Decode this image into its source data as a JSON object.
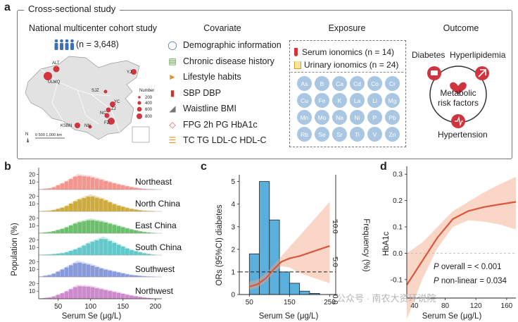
{
  "panel_a": {
    "label": "a",
    "frame_title": "Cross-sectional study",
    "cohort": {
      "heading": "National multicenter cohort study",
      "n_text": "(n = 3,648)",
      "map_cities": [
        "ALT",
        "ULMQ",
        "YJ",
        "SJZ",
        "YC",
        "ZJ",
        "NC",
        "FZ",
        "KSBN",
        "NN"
      ],
      "legend_title": "Number",
      "legend_values": [
        "200",
        "400",
        "600",
        "800"
      ],
      "scale_text": "0   500  1,000 km",
      "north": "N"
    },
    "covariate": {
      "heading": "Covariate",
      "items": [
        {
          "icon": "person-icon",
          "label": "Demographic information",
          "color": "#3b6fb6"
        },
        {
          "icon": "chronic-disease-icon",
          "label": "Chronic disease history",
          "color": "#4d9a3c"
        },
        {
          "icon": "running-person-icon",
          "label": "Lifestyle habits",
          "color": "#e8912d"
        },
        {
          "icon": "thermometer-icon",
          "label": "SBP  DBP",
          "color": "#c0392b"
        },
        {
          "icon": "waist-icon",
          "label": "Waistline  BMI",
          "color": "#777777"
        },
        {
          "icon": "blood-drop-icon",
          "label": "FPG   2h PG   HbA1c",
          "color": "#d9534f"
        },
        {
          "icon": "lipid-icon",
          "label": "TC  TG  LDL-C  HDL-C",
          "color": "#e8912d"
        }
      ]
    },
    "exposure": {
      "heading": "Exposure",
      "serum": "Serum ionomics (n = 14)",
      "urinary": "Urinary ionomics (n = 24)",
      "elements": [
        "As",
        "B",
        "Ca",
        "Cd",
        "Co",
        "Cr",
        "Cu",
        "Fe",
        "K",
        "La",
        "Li",
        "Mg",
        "Mn",
        "Mo",
        "Na",
        "Ni",
        "P",
        "Pb",
        "Rb",
        "Se",
        "Sr",
        "Ti",
        "V",
        "Zn"
      ]
    },
    "outcome": {
      "heading": "Outcome",
      "top_labels": "Diabetes  Hyperlipidemia",
      "center": "Metabolic\nrisk factors",
      "bottom": "Hypertension"
    }
  },
  "panel_b": {
    "label": "b",
    "ylabel": "Population (%)",
    "xlabel": "Serum Se (μg/L)",
    "xticks": [
      "50",
      "100",
      "150",
      "200"
    ],
    "yticks": [
      "10",
      "20"
    ],
    "colors": {
      "Northeast": "#f28b82",
      "North China": "#c9a227",
      "East China": "#5cb85c",
      "South China": "#4fc3c3",
      "Southwest": "#7b8fd6",
      "Northwest": "#c77cc7"
    }
  },
  "panel_c": {
    "label": "c",
    "ylabel_left": "ORs (95%CI) diabetes",
    "ylabel_right": "Frequency (%)",
    "xlabel": "Serum Se (μg/L)",
    "xticks": [
      "50",
      "150",
      "250"
    ],
    "yticks_left": [
      "0",
      "1",
      "2",
      "3",
      "4",
      "5"
    ],
    "yticks_right": [
      "0.0",
      "5.0",
      "10.0"
    ]
  },
  "panel_d": {
    "label": "d",
    "ylabel": "HbA1c",
    "xlabel": "Serum Se (μg/L)",
    "xticks": [
      "40",
      "80",
      "120",
      "160"
    ],
    "yticks": [
      "-0.1",
      "0.0",
      "0.1",
      "0.2",
      "0.3"
    ],
    "p_overall_text": " overall = < 0.001",
    "p_nonlinear_text": " non-linear = 0.034",
    "p_symbol": "P"
  },
  "watermark": "公众号 · 南农大资环说院",
  "chart_data": [
    {
      "type": "area",
      "title": "",
      "xlabel": "Serum Se (μg/L)",
      "ylabel": "Population (%)",
      "x": [
        20,
        40,
        60,
        80,
        100,
        120,
        140,
        160,
        180,
        200
      ],
      "xlim": [
        20,
        210
      ],
      "series": [
        {
          "name": "Northeast",
          "values": [
            0,
            2,
            10,
            20,
            18,
            13,
            8,
            4,
            1,
            0
          ]
        },
        {
          "name": "North China",
          "values": [
            0,
            1,
            6,
            16,
            22,
            17,
            9,
            4,
            1,
            0
          ]
        },
        {
          "name": "East China",
          "values": [
            0,
            2,
            7,
            15,
            19,
            16,
            11,
            6,
            2,
            0
          ]
        },
        {
          "name": "South China",
          "values": [
            0,
            1,
            3,
            9,
            18,
            24,
            16,
            8,
            3,
            0
          ]
        },
        {
          "name": "Southwest",
          "values": [
            0,
            3,
            12,
            21,
            17,
            11,
            7,
            3,
            1,
            0
          ]
        },
        {
          "name": "Northwest",
          "values": [
            0,
            2,
            9,
            18,
            17,
            13,
            9,
            5,
            2,
            0
          ]
        }
      ]
    },
    {
      "type": "bar",
      "title": "",
      "xlabel": "Serum Se (μg/L)",
      "ylabel": "ORs (95%CI) diabetes",
      "xlim": [
        25,
        265
      ],
      "ylim": [
        0,
        5.3
      ],
      "bins": [
        {
          "x0": 50,
          "x1": 75,
          "value": 1.8
        },
        {
          "x0": 75,
          "x1": 100,
          "value": 5.0
        },
        {
          "x0": 100,
          "x1": 125,
          "value": 3.3
        },
        {
          "x0": 125,
          "x1": 150,
          "value": 1.0
        },
        {
          "x0": 150,
          "x1": 175,
          "value": 0.5
        },
        {
          "x0": 175,
          "x1": 200,
          "value": 0.15
        },
        {
          "x0": 200,
          "x1": 225,
          "value": 0.05
        }
      ],
      "or_curve": {
        "x": [
          50,
          70,
          90,
          110,
          130,
          150,
          175,
          200,
          225,
          250
        ],
        "y": [
          0.35,
          0.45,
          0.7,
          1.1,
          1.45,
          1.6,
          1.7,
          1.85,
          2.0,
          2.15
        ],
        "lower": [
          0.2,
          0.3,
          0.55,
          0.95,
          1.25,
          1.2,
          0.95,
          0.8,
          0.65,
          0.5
        ],
        "upper": [
          0.55,
          0.65,
          0.9,
          1.3,
          1.7,
          2.1,
          2.6,
          3.1,
          3.6,
          4.1
        ]
      },
      "reference_line": 1
    },
    {
      "type": "line",
      "title": "",
      "xlabel": "Serum Se (μg/L)",
      "ylabel": "HbA1c",
      "xlim": [
        30,
        172
      ],
      "ylim": [
        -0.17,
        0.33
      ],
      "x": [
        30,
        50,
        70,
        90,
        110,
        130,
        150,
        172
      ],
      "y": [
        -0.12,
        -0.03,
        0.06,
        0.13,
        0.16,
        0.175,
        0.185,
        0.195
      ],
      "lower": [
        -0.25,
        -0.1,
        0.02,
        0.1,
        0.125,
        0.12,
        0.11,
        0.09
      ],
      "upper": [
        0.0,
        0.04,
        0.1,
        0.16,
        0.195,
        0.23,
        0.26,
        0.29
      ],
      "reference_line": 0
    }
  ]
}
